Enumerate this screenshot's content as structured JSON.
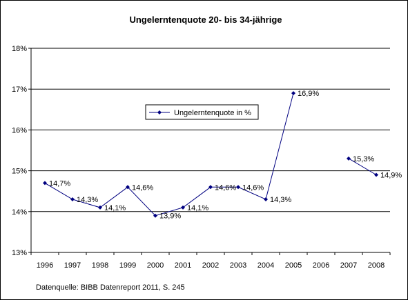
{
  "chart_data": {
    "type": "line",
    "title": "Ungelerntenquote 20- bis 34-jährige",
    "categories": [
      "1996",
      "1997",
      "1998",
      "1999",
      "2000",
      "2001",
      "2002",
      "2003",
      "2004",
      "2005",
      "2006",
      "2007",
      "2008"
    ],
    "series": [
      {
        "name": "Ungelerntenquote in %",
        "color": "#000080",
        "values": [
          14.7,
          14.3,
          14.1,
          14.6,
          13.9,
          14.1,
          14.6,
          14.6,
          14.3,
          16.9,
          null,
          15.3,
          14.9
        ],
        "labels": [
          "14,7%",
          "14,3%",
          "14,1%",
          "14,6%",
          "13,9%",
          "14,1%",
          "14,6%",
          "14,6%",
          "14,3%",
          "16,9%",
          "",
          "15,3%",
          "14,9%"
        ]
      }
    ],
    "yticks": [
      {
        "value": 13,
        "label": "13%"
      },
      {
        "value": 14,
        "label": "14%"
      },
      {
        "value": 15,
        "label": "15%"
      },
      {
        "value": 16,
        "label": "16%"
      },
      {
        "value": 17,
        "label": "17%"
      },
      {
        "value": 18,
        "label": "18%"
      }
    ],
    "ylim": [
      13,
      18
    ],
    "grid": true,
    "legend_position": "top-center"
  },
  "source_note": "Datenquelle: BIBB Datenreport 2011, S. 245"
}
